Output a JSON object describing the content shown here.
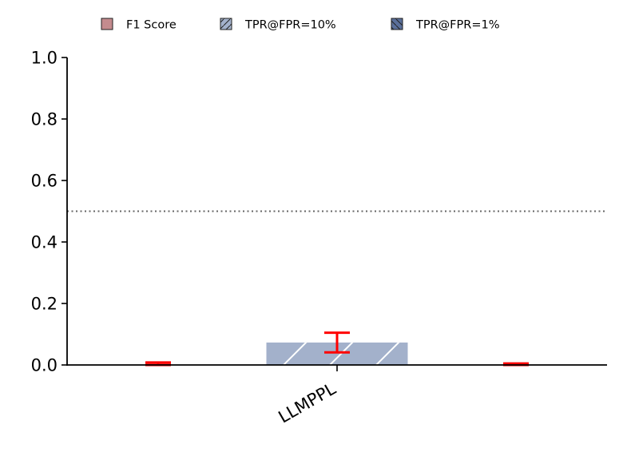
{
  "chart_data": {
    "type": "bar",
    "categories": [
      "LLMPPL"
    ],
    "series": [
      {
        "name": "F1 Score",
        "values": [
          0.0
        ],
        "error": [
          0.008
        ],
        "color": "#c48b8e",
        "hatch": "none"
      },
      {
        "name": "TPR@FPR=10%",
        "values": [
          0.073
        ],
        "error": [
          0.032
        ],
        "color": "#a3b1cb",
        "hatch": "forward-slash"
      },
      {
        "name": "TPR@FPR=1%",
        "values": [
          0.0
        ],
        "error": [
          0.005
        ],
        "color": "#5a6f9a",
        "hatch": "back-slash"
      }
    ],
    "ylim": [
      0,
      1.0
    ],
    "yticks": [
      "0.0",
      "0.2",
      "0.4",
      "0.6",
      "0.8",
      "1.0"
    ],
    "reference_line": {
      "y": 0.5,
      "style": "dotted",
      "color": "#666666"
    },
    "error_bar_color": "#ff0000",
    "legend_position": "top-center",
    "xlabel": "",
    "ylabel": "",
    "title": ""
  }
}
